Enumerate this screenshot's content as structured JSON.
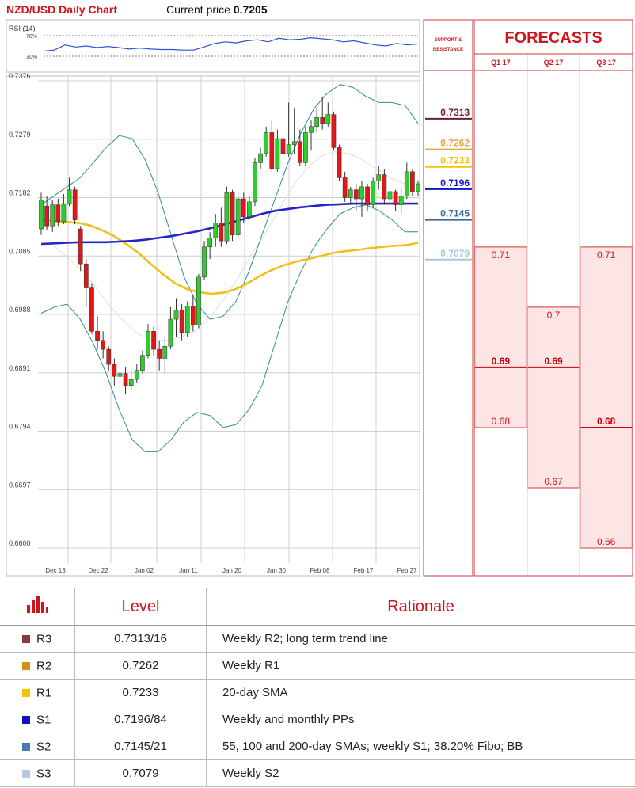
{
  "header": {
    "title": "NZD/USD Daily Chart",
    "price_label": "Current price",
    "price_value": "0.7205"
  },
  "rsi": {
    "label": "RSI (14)",
    "upper": "70%",
    "lower": "30%",
    "values": [
      40,
      42,
      52,
      48,
      50,
      47,
      49,
      47,
      44,
      46,
      44,
      43,
      43,
      42,
      42,
      48,
      55,
      58,
      56,
      60,
      62,
      58,
      65,
      62,
      63,
      66,
      64,
      62,
      58,
      60,
      56,
      52,
      50,
      55,
      52,
      54
    ]
  },
  "chart_data": {
    "type": "candlestick",
    "title": "NZD/USD Daily Chart",
    "ylim": [
      0.66,
      0.7376
    ],
    "yticks": [
      "0.7376",
      "0.7279",
      "0.7182",
      "0.7085",
      "0.6988",
      "0.6891",
      "0.6794",
      "0.6697",
      "0.6600"
    ],
    "xticks": [
      "Dec 13",
      "Dec 22",
      "Jan 02",
      "Jan 11",
      "Jan 20",
      "Jan 30",
      "Feb 08",
      "Feb 17",
      "Feb 27"
    ],
    "candles": [
      [
        0.713,
        0.7178,
        0.719,
        0.712
      ],
      [
        0.7168,
        0.7135,
        0.7185,
        0.7128
      ],
      [
        0.7135,
        0.717,
        0.7178,
        0.7125
      ],
      [
        0.717,
        0.7142,
        0.718,
        0.7135
      ],
      [
        0.7142,
        0.7172,
        0.7188,
        0.7138
      ],
      [
        0.7172,
        0.7195,
        0.7215,
        0.7168
      ],
      [
        0.7195,
        0.7145,
        0.72,
        0.7138
      ],
      [
        0.713,
        0.7072,
        0.7135,
        0.706
      ],
      [
        0.7072,
        0.7032,
        0.708,
        0.7
      ],
      [
        0.7032,
        0.696,
        0.704,
        0.6955
      ],
      [
        0.696,
        0.6945,
        0.6985,
        0.693
      ],
      [
        0.6945,
        0.693,
        0.696,
        0.6915
      ],
      [
        0.693,
        0.6905,
        0.6935,
        0.6895
      ],
      [
        0.6905,
        0.6885,
        0.6915,
        0.687
      ],
      [
        0.6885,
        0.689,
        0.691,
        0.686
      ],
      [
        0.689,
        0.687,
        0.69,
        0.6855
      ],
      [
        0.687,
        0.688,
        0.6895,
        0.6862
      ],
      [
        0.688,
        0.6895,
        0.6905,
        0.6875
      ],
      [
        0.6895,
        0.692,
        0.6928,
        0.689
      ],
      [
        0.692,
        0.696,
        0.6972,
        0.6915
      ],
      [
        0.696,
        0.693,
        0.6968,
        0.692
      ],
      [
        0.693,
        0.6915,
        0.6945,
        0.6895
      ],
      [
        0.6915,
        0.6935,
        0.695,
        0.689
      ],
      [
        0.6935,
        0.698,
        0.7,
        0.693
      ],
      [
        0.698,
        0.6995,
        0.7015,
        0.695
      ],
      [
        0.6995,
        0.6958,
        0.7005,
        0.6945
      ],
      [
        0.6958,
        0.7002,
        0.701,
        0.695
      ],
      [
        0.7002,
        0.697,
        0.702,
        0.696
      ],
      [
        0.697,
        0.705,
        0.7055,
        0.6965
      ],
      [
        0.705,
        0.71,
        0.711,
        0.7045
      ],
      [
        0.71,
        0.7115,
        0.7125,
        0.708
      ],
      [
        0.7115,
        0.714,
        0.7155,
        0.71
      ],
      [
        0.714,
        0.711,
        0.7165,
        0.71
      ],
      [
        0.711,
        0.719,
        0.72,
        0.7105
      ],
      [
        0.719,
        0.712,
        0.7195,
        0.711
      ],
      [
        0.712,
        0.718,
        0.719,
        0.7115
      ],
      [
        0.718,
        0.715,
        0.719,
        0.714
      ],
      [
        0.715,
        0.7175,
        0.7185,
        0.7145
      ],
      [
        0.7175,
        0.724,
        0.7248,
        0.7168
      ],
      [
        0.724,
        0.7255,
        0.7265,
        0.723
      ],
      [
        0.7255,
        0.729,
        0.73,
        0.725
      ],
      [
        0.729,
        0.723,
        0.731,
        0.7225
      ],
      [
        0.723,
        0.728,
        0.7295,
        0.7225
      ],
      [
        0.728,
        0.7255,
        0.729,
        0.725
      ],
      [
        0.7255,
        0.727,
        0.734,
        0.725
      ],
      [
        0.727,
        0.7275,
        0.733,
        0.7255
      ],
      [
        0.7275,
        0.724,
        0.7295,
        0.7235
      ],
      [
        0.724,
        0.729,
        0.73,
        0.7235
      ],
      [
        0.729,
        0.73,
        0.731,
        0.726
      ],
      [
        0.73,
        0.7315,
        0.733,
        0.729
      ],
      [
        0.7315,
        0.7305,
        0.735,
        0.7295
      ],
      [
        0.7305,
        0.732,
        0.734,
        0.73
      ],
      [
        0.732,
        0.7265,
        0.7325,
        0.726
      ],
      [
        0.7265,
        0.7215,
        0.727,
        0.721
      ],
      [
        0.7215,
        0.7182,
        0.7225,
        0.7175
      ],
      [
        0.7182,
        0.7195,
        0.72,
        0.717
      ],
      [
        0.7195,
        0.718,
        0.7205,
        0.716
      ],
      [
        0.718,
        0.72,
        0.721,
        0.715
      ],
      [
        0.72,
        0.717,
        0.7205,
        0.716
      ],
      [
        0.717,
        0.721,
        0.7215,
        0.7165
      ],
      [
        0.721,
        0.722,
        0.7235,
        0.7195
      ],
      [
        0.722,
        0.718,
        0.723,
        0.717
      ],
      [
        0.718,
        0.7192,
        0.72,
        0.717
      ],
      [
        0.7192,
        0.717,
        0.7195,
        0.716
      ],
      [
        0.717,
        0.7185,
        0.72,
        0.7155
      ],
      [
        0.7185,
        0.7225,
        0.724,
        0.718
      ],
      [
        0.7225,
        0.7192,
        0.723,
        0.7185
      ],
      [
        0.7192,
        0.7205,
        0.721,
        0.7185
      ]
    ],
    "sma_yellow": [
      0.7145,
      0.7143,
      0.7142,
      0.714,
      0.7136,
      0.7128,
      0.7118,
      0.7105,
      0.709,
      0.7072,
      0.7055,
      0.704,
      0.703,
      0.7025,
      0.7022,
      0.7024,
      0.703,
      0.704,
      0.7052,
      0.7062,
      0.707,
      0.7076,
      0.708,
      0.7085,
      0.709,
      0.7093,
      0.7095,
      0.7098,
      0.71,
      0.7102,
      0.7103,
      0.7107
    ],
    "sma_blue": [
      0.7105,
      0.7106,
      0.7107,
      0.7108,
      0.7108,
      0.7108,
      0.7109,
      0.711,
      0.7112,
      0.7115,
      0.7118,
      0.7122,
      0.7126,
      0.7131,
      0.7137,
      0.7143,
      0.7149,
      0.7155,
      0.716,
      0.7163,
      0.7166,
      0.7168,
      0.717,
      0.7171,
      0.7172,
      0.7172,
      0.7172,
      0.7172,
      0.7172,
      0.7172
    ],
    "bb_upper": [
      0.717,
      0.7185,
      0.72,
      0.7215,
      0.724,
      0.7265,
      0.7285,
      0.728,
      0.7245,
      0.719,
      0.712,
      0.705,
      0.7005,
      0.698,
      0.6985,
      0.701,
      0.706,
      0.712,
      0.718,
      0.724,
      0.729,
      0.733,
      0.7355,
      0.737,
      0.7365,
      0.735,
      0.734,
      0.734,
      0.7335,
      0.7305
    ],
    "bb_lower": [
      0.699,
      0.7,
      0.7005,
      0.698,
      0.694,
      0.689,
      0.683,
      0.678,
      0.676,
      0.676,
      0.678,
      0.681,
      0.6825,
      0.682,
      0.68,
      0.6805,
      0.683,
      0.687,
      0.694,
      0.701,
      0.706,
      0.71,
      0.713,
      0.7155,
      0.7165,
      0.717,
      0.716,
      0.7145,
      0.7125,
      0.7125
    ],
    "bb_mid": [
      0.711,
      0.71,
      0.708,
      0.706,
      0.703,
      0.7,
      0.6975,
      0.6955,
      0.6945,
      0.6945,
      0.695,
      0.696,
      0.698,
      0.701,
      0.7045,
      0.7085,
      0.712,
      0.716,
      0.72,
      0.723,
      0.725,
      0.7258,
      0.7255,
      0.7245,
      0.723,
      0.7215,
      0.7205,
      0.7195
    ]
  },
  "sr": {
    "header": "SUPPORT & RESISTANCE",
    "levels": [
      {
        "value": 0.7313,
        "label": "0.7313",
        "color": "#6b1f2e"
      },
      {
        "value": 0.7262,
        "label": "0.7262",
        "color": "#e6a545"
      },
      {
        "value": 0.7233,
        "label": "0.7233",
        "color": "#f3c400"
      },
      {
        "value": 0.7196,
        "label": "0.7196",
        "color": "#0c17c8"
      },
      {
        "value": 0.7145,
        "label": "0.7145",
        "color": "#3c6a9a"
      },
      {
        "value": 0.7079,
        "label": "0.7079",
        "color": "#a8c9d8"
      }
    ]
  },
  "forecasts": {
    "title": "FORECASTS",
    "columns": [
      {
        "label": "Q1 17",
        "high": 0.71,
        "high_label": "0.71",
        "mid": 0.69,
        "mid_label": "0.69",
        "low": 0.68,
        "low_label": "0.68"
      },
      {
        "label": "Q2 17",
        "high": 0.7,
        "high_label": "0.7",
        "mid": 0.69,
        "mid_label": "0.69",
        "low": 0.67,
        "low_label": "0.67"
      },
      {
        "label": "Q3 17",
        "high": 0.71,
        "high_label": "0.71",
        "mid": 0.68,
        "mid_label": "0.68",
        "low": 0.66,
        "low_label": "0.66"
      }
    ]
  },
  "table": {
    "headers": {
      "level": "Level",
      "rationale": "Rationale"
    },
    "rows": [
      {
        "code": "R3",
        "color": "#8b3a3a",
        "level": "0.7313/16",
        "rationale": "Weekly R2; long term trend line"
      },
      {
        "code": "R2",
        "color": "#c9950e",
        "level": "0.7262",
        "rationale": "Weekly R1"
      },
      {
        "code": "R1",
        "color": "#f5c400",
        "level": "0.7233",
        "rationale": "20-day SMA"
      },
      {
        "code": "S1",
        "color": "#1010c8",
        "level": "0.7196/84",
        "rationale": "Weekly and monthly PPs"
      },
      {
        "code": "S2",
        "color": "#4a78b8",
        "level": "0.7145/21",
        "rationale": "55, 100 and 200-day SMAs; weekly S1; 38.20% Fibo; BB"
      },
      {
        "code": "S3",
        "color": "#b8c8e0",
        "level": "0.7079",
        "rationale": "Weekly S2"
      }
    ]
  }
}
